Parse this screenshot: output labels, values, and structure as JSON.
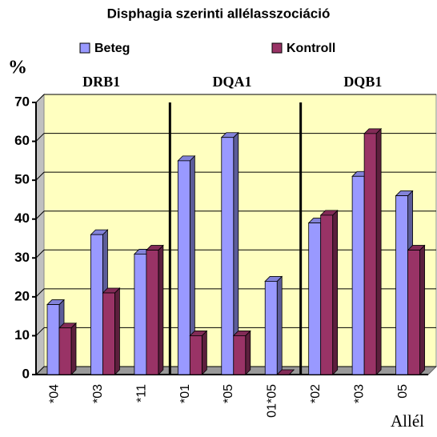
{
  "chart_data": {
    "type": "bar3d",
    "title": "Disphagia szerinti allélasszociáció",
    "y_label": "%",
    "x_label": "Allél",
    "groups": [
      "DRB1",
      "DQA1",
      "DQB1"
    ],
    "categories": [
      "*04",
      "*03",
      "*11",
      "*01",
      "*05",
      "01*05",
      "*02",
      "*03",
      "05"
    ],
    "series": [
      {
        "name": "Beteg",
        "color": "#9999ff",
        "values": [
          18,
          36,
          31,
          55,
          61,
          24,
          39,
          51,
          46
        ]
      },
      {
        "name": "Kontroll",
        "color": "#993366",
        "values": [
          12,
          21,
          32,
          10,
          10,
          0,
          41,
          62,
          32
        ]
      }
    ],
    "ylim": [
      0,
      70
    ],
    "yticks": [
      0,
      10,
      20,
      30,
      40,
      50,
      60,
      70
    ],
    "grid": true
  }
}
